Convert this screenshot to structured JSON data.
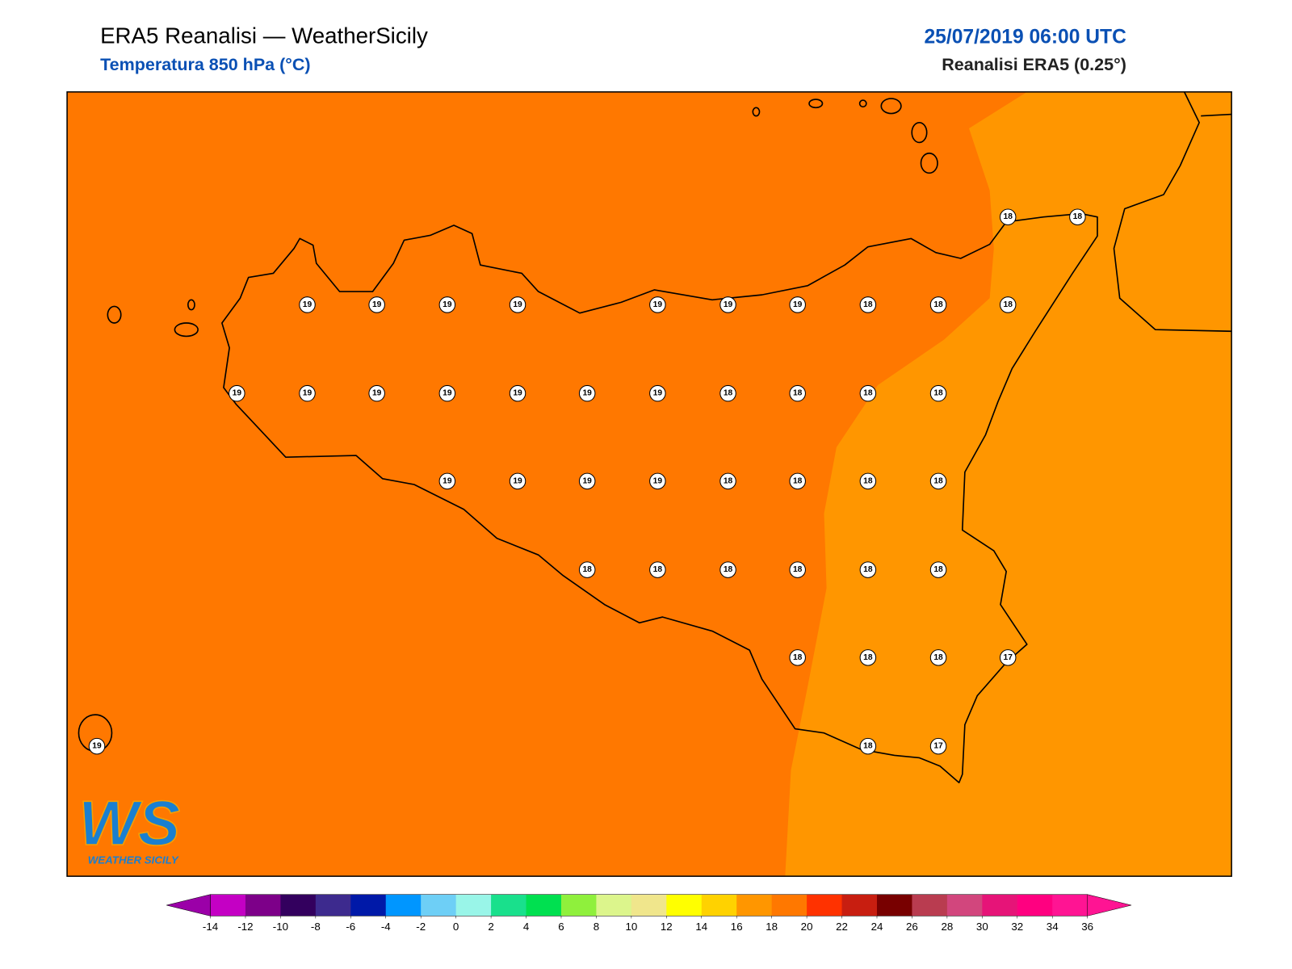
{
  "header": {
    "title": "ERA5 Reanalisi — WeatherSicily",
    "subtitle": "Temperatura 850 hPa (°C)",
    "datetime": "25/07/2019 06:00 UTC",
    "source": "Reanalisi ERA5 (0.25°)"
  },
  "map": {
    "stations": [
      18,
      18,
      19,
      19,
      19,
      19,
      19,
      19,
      19,
      18,
      18,
      18,
      19,
      19,
      19,
      19,
      19,
      19,
      19,
      18,
      18,
      18,
      18,
      19,
      19,
      19,
      19,
      18,
      18,
      18,
      18,
      18,
      18,
      18,
      18,
      18,
      18,
      18,
      18,
      18,
      17,
      19,
      18,
      17
    ]
  },
  "logo": {
    "text": "WS",
    "caption": "WEATHER SICILY"
  },
  "colorbar": {
    "ticks": [
      -14,
      -12,
      -10,
      -8,
      -6,
      -4,
      -2,
      0,
      2,
      4,
      6,
      8,
      10,
      12,
      14,
      16,
      18,
      20,
      22,
      24,
      26,
      28,
      30,
      32,
      34,
      36
    ],
    "colors": [
      "#c400c4",
      "#7d0089",
      "#33005e",
      "#3d2a8e",
      "#0019a8",
      "#0096ff",
      "#6ecff6",
      "#99f5e8",
      "#19e08c",
      "#00e050",
      "#8ff03c",
      "#dcf58c",
      "#f0e68c",
      "#ffff00",
      "#ffd200",
      "#ff9600",
      "#ff7800",
      "#ff3200",
      "#c81e10",
      "#780000",
      "#b93c50",
      "#d2467d",
      "#e61478",
      "#ff0080",
      "#ff1493"
    ],
    "extend_colors": [
      "#9b00a8",
      "#ff1493"
    ]
  }
}
